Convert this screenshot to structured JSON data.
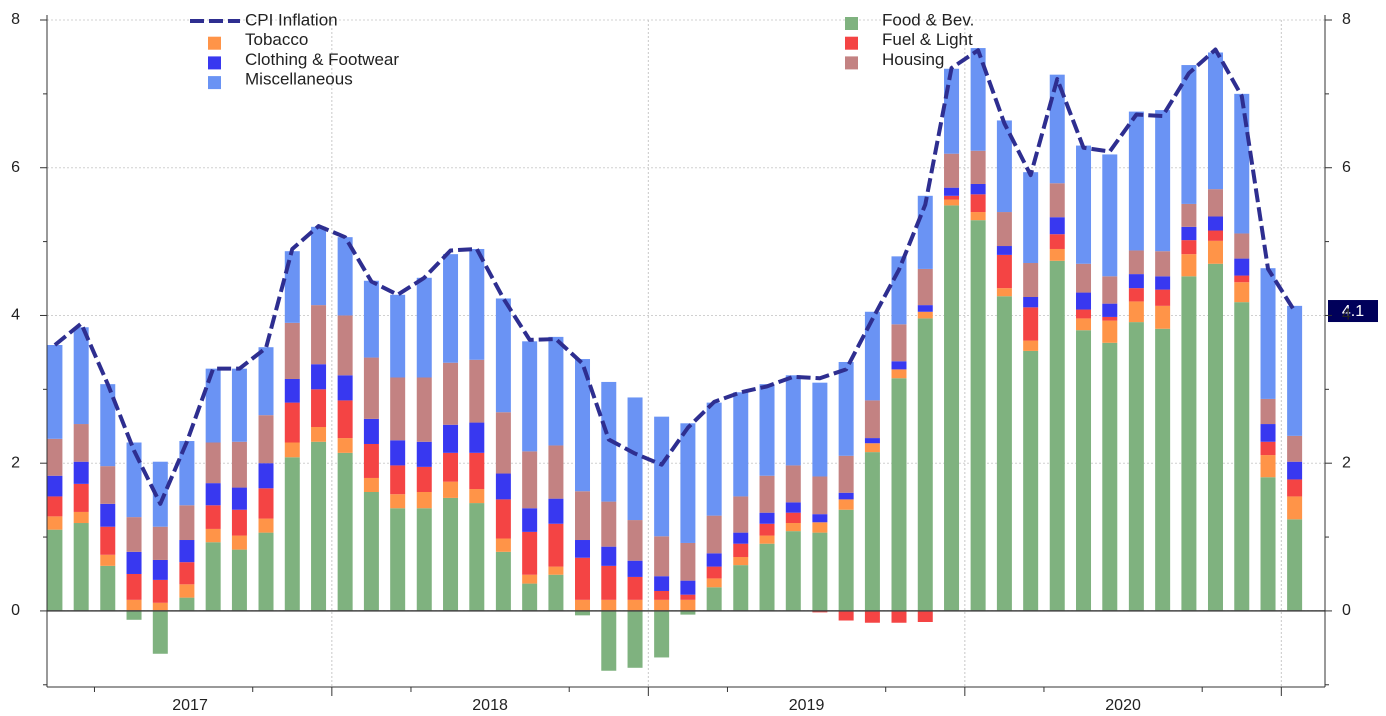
{
  "chart_data": {
    "type": "bar",
    "stacked": true,
    "grid": true,
    "x": [
      2017.125,
      2017.208,
      2017.292,
      2017.375,
      2017.458,
      2017.542,
      2017.625,
      2017.708,
      2017.792,
      2017.875,
      2017.958,
      2018.042,
      2018.125,
      2018.208,
      2018.292,
      2018.375,
      2018.458,
      2018.542,
      2018.625,
      2018.708,
      2018.792,
      2018.875,
      2018.958,
      2019.042,
      2019.125,
      2019.208,
      2019.292,
      2019.375,
      2019.458,
      2019.542,
      2019.625,
      2019.708,
      2019.792,
      2019.875,
      2019.958,
      2020.042,
      2020.125,
      2020.208,
      2020.292,
      2020.375,
      2020.458,
      2020.542,
      2020.625,
      2020.708,
      2020.792,
      2020.875,
      2020.958,
      2021.042
    ],
    "xlim": [
      2017.1,
      2021.138
    ],
    "xticks": [
      {
        "value": 2017.552,
        "label": "2017"
      },
      {
        "value": 2018.5,
        "label": "2018"
      },
      {
        "value": 2019.5,
        "label": "2019"
      },
      {
        "value": 2020.5,
        "label": "2020"
      }
    ],
    "xgrid": [
      2018,
      2019,
      2020,
      2021
    ],
    "xminor": [
      2017.25,
      2017.75,
      2018.25,
      2018.75,
      2019.25,
      2019.75,
      2020.25,
      2020.75
    ],
    "ylim": [
      -1.03,
      8
    ],
    "yticks": [
      0,
      2,
      4,
      6,
      8
    ],
    "yminor": [
      -1,
      1,
      3,
      5,
      7
    ],
    "y2lim": [
      -1.03,
      8
    ],
    "y2ticks": [
      0,
      2,
      4,
      6,
      8
    ],
    "series": [
      {
        "name": "Food & Bev.",
        "color": "#7fb27f",
        "values": [
          1.1,
          1.19,
          0.61,
          -0.12,
          -0.58,
          0.18,
          0.93,
          0.83,
          1.06,
          2.08,
          2.29,
          2.14,
          1.61,
          1.39,
          1.39,
          1.53,
          1.46,
          0.8,
          0.37,
          0.49,
          -0.06,
          -0.81,
          -0.77,
          -0.63,
          -0.05,
          0.32,
          0.62,
          0.91,
          1.08,
          1.06,
          1.37,
          2.15,
          3.15,
          3.96,
          5.49,
          5.29,
          4.26,
          3.52,
          4.74,
          3.8,
          3.63,
          3.91,
          3.82,
          4.53,
          4.7,
          4.18,
          1.81,
          1.24
        ]
      },
      {
        "name": "Tobacco",
        "color": "#ff9448",
        "values": [
          0.18,
          0.15,
          0.15,
          0.15,
          0.11,
          0.18,
          0.18,
          0.19,
          0.19,
          0.2,
          0.2,
          0.2,
          0.19,
          0.19,
          0.22,
          0.22,
          0.19,
          0.18,
          0.12,
          0.11,
          0.15,
          0.15,
          0.15,
          0.15,
          0.15,
          0.12,
          0.11,
          0.11,
          0.11,
          0.14,
          0.14,
          0.12,
          0.12,
          0.09,
          0.08,
          0.11,
          0.11,
          0.14,
          0.16,
          0.16,
          0.3,
          0.28,
          0.31,
          0.3,
          0.31,
          0.27,
          0.3,
          0.31
        ]
      },
      {
        "name": "Fuel & Light",
        "color": "#f44444",
        "values": [
          0.27,
          0.38,
          0.38,
          0.35,
          0.31,
          0.3,
          0.32,
          0.35,
          0.41,
          0.54,
          0.51,
          0.51,
          0.46,
          0.39,
          0.34,
          0.39,
          0.49,
          0.53,
          0.58,
          0.58,
          0.57,
          0.46,
          0.31,
          0.12,
          0.07,
          0.16,
          0.18,
          0.16,
          0.14,
          -0.02,
          -0.13,
          -0.16,
          -0.16,
          -0.15,
          0.05,
          0.24,
          0.45,
          0.45,
          0.2,
          0.12,
          0.05,
          0.18,
          0.22,
          0.19,
          0.14,
          0.09,
          0.18,
          0.23
        ]
      },
      {
        "name": "Clothing & Footwear",
        "color": "#3838f0",
        "values": [
          0.28,
          0.3,
          0.31,
          0.3,
          0.27,
          0.3,
          0.3,
          0.3,
          0.34,
          0.32,
          0.34,
          0.34,
          0.34,
          0.34,
          0.34,
          0.38,
          0.41,
          0.35,
          0.32,
          0.34,
          0.24,
          0.26,
          0.22,
          0.2,
          0.19,
          0.18,
          0.15,
          0.15,
          0.14,
          0.11,
          0.09,
          0.07,
          0.11,
          0.09,
          0.11,
          0.14,
          0.12,
          0.14,
          0.23,
          0.23,
          0.18,
          0.19,
          0.18,
          0.18,
          0.19,
          0.23,
          0.24,
          0.24
        ]
      },
      {
        "name": "Housing",
        "color": "#c38282",
        "values": [
          0.5,
          0.51,
          0.51,
          0.47,
          0.45,
          0.47,
          0.55,
          0.62,
          0.65,
          0.76,
          0.8,
          0.81,
          0.83,
          0.85,
          0.87,
          0.84,
          0.85,
          0.83,
          0.77,
          0.72,
          0.66,
          0.61,
          0.55,
          0.54,
          0.51,
          0.51,
          0.49,
          0.5,
          0.5,
          0.51,
          0.5,
          0.51,
          0.5,
          0.49,
          0.46,
          0.45,
          0.46,
          0.46,
          0.46,
          0.39,
          0.37,
          0.32,
          0.34,
          0.31,
          0.37,
          0.34,
          0.34,
          0.35
        ]
      },
      {
        "name": "Miscellaneous",
        "color": "#6a93f4",
        "values": [
          1.27,
          1.31,
          1.11,
          1.01,
          0.88,
          0.87,
          1.0,
          0.99,
          0.92,
          0.97,
          1.06,
          1.06,
          1.04,
          1.12,
          1.35,
          1.47,
          1.5,
          1.54,
          1.49,
          1.47,
          1.79,
          1.62,
          1.66,
          1.62,
          1.62,
          1.53,
          1.41,
          1.24,
          1.22,
          1.27,
          1.27,
          1.2,
          0.92,
          0.99,
          1.15,
          1.39,
          1.24,
          1.23,
          1.47,
          1.6,
          1.65,
          1.88,
          1.91,
          1.88,
          1.85,
          1.89,
          1.77,
          1.76
        ]
      },
      {
        "name": "CPI Inflation",
        "type": "line",
        "dashed": true,
        "color": "#2e2e90",
        "values": [
          3.6,
          3.89,
          3.07,
          2.17,
          1.45,
          2.29,
          3.28,
          3.28,
          3.56,
          4.9,
          5.21,
          5.06,
          4.46,
          4.28,
          4.51,
          4.88,
          4.9,
          4.23,
          3.67,
          3.68,
          3.35,
          2.32,
          2.13,
          1.98,
          2.48,
          2.83,
          2.96,
          3.04,
          3.17,
          3.15,
          3.27,
          3.95,
          4.62,
          5.5,
          7.35,
          7.59,
          6.6,
          5.9,
          7.2,
          6.27,
          6.22,
          6.72,
          6.7,
          7.28,
          7.6,
          6.97,
          4.63,
          4.06
        ],
        "last_value_label": "4.1"
      }
    ]
  }
}
